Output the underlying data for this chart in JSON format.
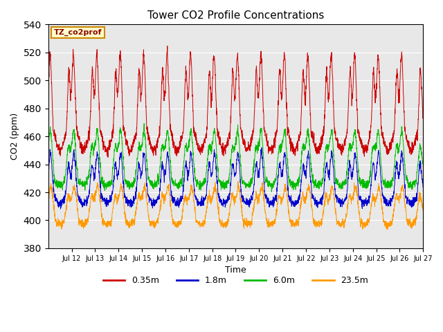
{
  "title": "Tower CO2 Profile Concentrations",
  "xlabel": "Time",
  "ylabel": "CO2 (ppm)",
  "ylim": [
    380,
    540
  ],
  "yticks": [
    380,
    400,
    420,
    440,
    460,
    480,
    500,
    520,
    540
  ],
  "legend_label": "TZ_co2prof",
  "series_labels": [
    "0.35m",
    "1.8m",
    "6.0m",
    "23.5m"
  ],
  "series_colors": [
    "#cc0000",
    "#0000cc",
    "#00bb00",
    "#ff9900"
  ],
  "axes_bg": "#e8e8e8",
  "n_days": 16,
  "x_tick_labels": [
    "Jul 12",
    "Jul 13",
    "Jul 14",
    "Jul 15",
    "Jul 16",
    "Jul 17",
    "Jul 18",
    "Jul 19",
    "Jul 20",
    "Jul 21",
    "Jul 22",
    "Jul 23",
    "Jul 24",
    "Jul 25",
    "Jul 26",
    "Jul 27"
  ]
}
